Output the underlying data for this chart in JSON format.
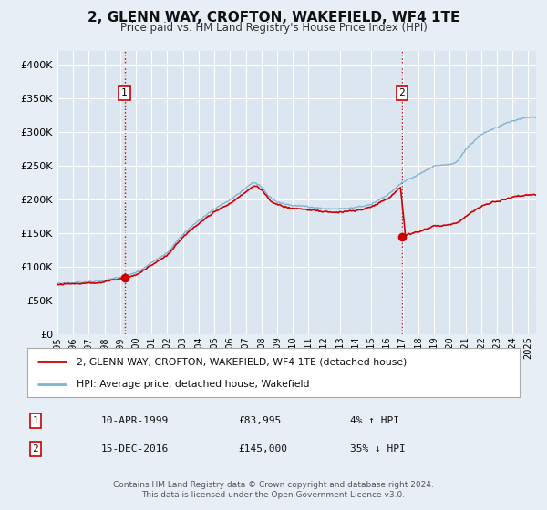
{
  "title": "2, GLENN WAY, CROFTON, WAKEFIELD, WF4 1TE",
  "subtitle": "Price paid vs. HM Land Registry's House Price Index (HPI)",
  "background_color": "#e8eef5",
  "plot_bg_color": "#dce6f0",
  "grid_color": "#ffffff",
  "sale1": {
    "date_num": 1999.27,
    "price": 83995,
    "label": "1",
    "date_str": "10-APR-1999",
    "pct": "4% ↑ HPI"
  },
  "sale2": {
    "date_num": 2016.96,
    "price": 145000,
    "label": "2",
    "date_str": "15-DEC-2016",
    "pct": "35% ↓ HPI"
  },
  "hpi_line_color": "#7fb3d3",
  "price_line_color": "#cc0000",
  "marker_color": "#cc0000",
  "vline_color": "#cc0000",
  "xmin": 1995.0,
  "xmax": 2025.5,
  "ymin": 0,
  "ymax": 420000,
  "yticks": [
    0,
    50000,
    100000,
    150000,
    200000,
    250000,
    300000,
    350000,
    400000
  ],
  "ytick_labels": [
    "£0",
    "£50K",
    "£100K",
    "£150K",
    "£200K",
    "£250K",
    "£300K",
    "£350K",
    "£400K"
  ],
  "xticks": [
    1995,
    1996,
    1997,
    1998,
    1999,
    2000,
    2001,
    2002,
    2003,
    2004,
    2005,
    2006,
    2007,
    2008,
    2009,
    2010,
    2011,
    2012,
    2013,
    2014,
    2015,
    2016,
    2017,
    2018,
    2019,
    2020,
    2021,
    2022,
    2023,
    2024,
    2025
  ],
  "legend_label1": "2, GLENN WAY, CROFTON, WAKEFIELD, WF4 1TE (detached house)",
  "legend_label2": "HPI: Average price, detached house, Wakefield",
  "footer": "Contains HM Land Registry data © Crown copyright and database right 2024.\nThis data is licensed under the Open Government Licence v3.0.",
  "note1_label": "1",
  "note1_date": "10-APR-1999",
  "note1_price": "£83,995",
  "note1_pct": "4% ↑ HPI",
  "note2_label": "2",
  "note2_date": "15-DEC-2016",
  "note2_price": "£145,000",
  "note2_pct": "35% ↓ HPI"
}
